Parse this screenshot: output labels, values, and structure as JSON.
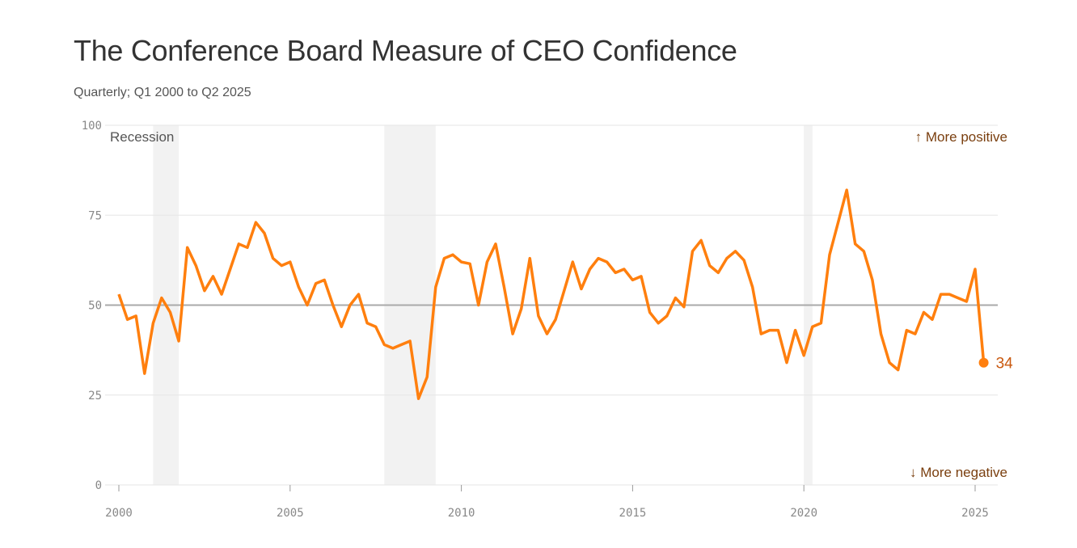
{
  "chart_data": {
    "type": "line",
    "title": "The Conference Board Measure of CEO Confidence",
    "subtitle": "Quarterly; Q1 2000 to Q2 2025",
    "xlabel": "",
    "ylabel": "",
    "ylim": [
      0,
      100
    ],
    "xlim": [
      2000,
      2025.25
    ],
    "y_ticks": [
      "0",
      "25",
      "50",
      "75",
      "100"
    ],
    "x_ticks": [
      "2000",
      "2005",
      "2010",
      "2015",
      "2020",
      "2025"
    ],
    "grid": true,
    "reference_line": 50,
    "start": 2000,
    "step": 0.25,
    "series": [
      {
        "name": "CEO Confidence",
        "color": "#ff7f0e",
        "values": [
          53,
          46,
          47,
          31,
          45,
          52,
          48,
          40,
          66,
          61,
          54,
          58,
          53,
          60,
          67,
          66,
          73,
          70,
          63,
          61,
          62,
          55,
          50,
          56,
          57,
          50,
          44,
          50,
          53,
          45,
          44,
          39,
          38,
          39,
          40,
          24,
          30,
          55,
          63,
          64,
          62,
          61.5,
          50,
          62,
          67,
          55,
          42,
          49,
          63,
          47,
          42,
          46,
          54,
          62,
          54.5,
          60,
          63,
          62,
          59,
          60,
          57,
          58,
          48,
          45,
          47,
          52,
          49.5,
          65,
          68,
          61,
          59,
          63,
          65,
          62.5,
          55,
          42,
          43,
          43,
          34,
          43,
          36,
          44,
          45,
          64,
          73,
          82,
          67,
          65,
          57,
          42,
          34,
          32,
          43,
          42,
          48,
          46,
          53,
          53,
          52,
          51,
          60,
          34
        ]
      }
    ],
    "recessions": [
      {
        "label": "Recession",
        "start": 2001.0,
        "end": 2001.75
      },
      {
        "start": 2007.75,
        "end": 2009.25
      },
      {
        "start": 2020.0,
        "end": 2020.25
      }
    ],
    "annotations": {
      "recession_label": "Recession",
      "positive": "↑ More positive",
      "negative": "↓ More negative",
      "last_value": "34"
    },
    "colors": {
      "line": "#ff7f0e",
      "annotation": "#7a3f0f",
      "recession": "#f2f2f2",
      "grid": "#e6e6e6",
      "midline": "#aaaaaa"
    }
  }
}
